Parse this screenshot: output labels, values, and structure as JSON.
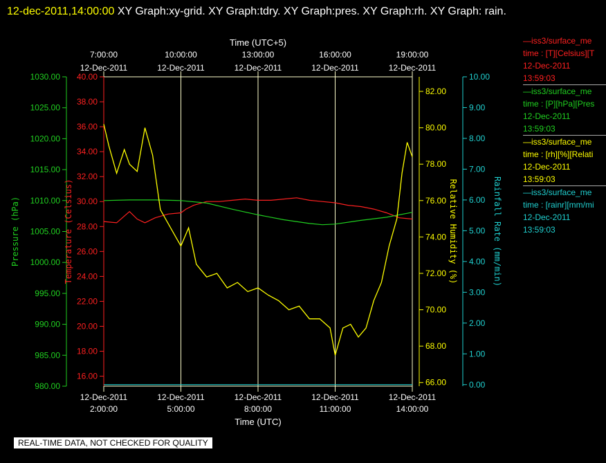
{
  "title": {
    "timestamp": "12-dec-2011,14:00:00",
    "graphs": " XY Graph:xy-grid.  XY Graph:tdry.  XY Graph:pres.  XY Graph:rh.  XY Graph: rain."
  },
  "footer": "REAL-TIME DATA, NOT CHECKED FOR QUALITY",
  "colors": {
    "temp": "#ff2020",
    "pres": "#20d020",
    "rh": "#ffff00",
    "rain": "#20d0d0",
    "text": "#ffffff",
    "grid": "#ffffcc"
  },
  "legend": [
    {
      "line1": "—iss3/surface_me",
      "line2": "time : [T][Celsius][T",
      "line3": "12-Dec-2011",
      "line4": "13:59:03",
      "color": "#ff2020"
    },
    {
      "line1": "—iss3/surface_me",
      "line2": "time : [P][hPa][Pres",
      "line3": "12-Dec-2011",
      "line4": "13:59:03",
      "color": "#20d020"
    },
    {
      "line1": "—iss3/surface_me",
      "line2": "time : [rh][%][Relati",
      "line3": "12-Dec-2011",
      "line4": "13:59:03",
      "color": "#ffff00"
    },
    {
      "line1": "—iss3/surface_me",
      "line2": "time : [rainr][mm/mi",
      "line3": "12-Dec-2011",
      "line4": "13:59:03",
      "color": "#20d0d0"
    }
  ],
  "chart_data": {
    "type": "line",
    "x_bottom_label": "Time (UTC)",
    "x_top_label": "Time (UTC+5)",
    "x_bottom_ticks": [
      {
        "date": "12-Dec-2011",
        "time": "2:00:00"
      },
      {
        "date": "12-Dec-2011",
        "time": "5:00:00"
      },
      {
        "date": "12-Dec-2011",
        "time": "8:00:00"
      },
      {
        "date": "12-Dec-2011",
        "time": "11:00:00"
      },
      {
        "date": "12-Dec-2011",
        "time": "14:00:00"
      }
    ],
    "x_top_ticks": [
      {
        "time": "7:00:00",
        "date": "12-Dec-2011"
      },
      {
        "time": "10:00:00",
        "date": "12-Dec-2011"
      },
      {
        "time": "13:00:00",
        "date": "12-Dec-2011"
      },
      {
        "time": "16:00:00",
        "date": "12-Dec-2011"
      },
      {
        "time": "19:00:00",
        "date": "12-Dec-2011"
      }
    ],
    "x_range_hours_utc": [
      2,
      14
    ],
    "axes": {
      "pressure": {
        "label": "Pressure (hPa)",
        "range": [
          980,
          1030
        ],
        "ticks": [
          "980.00",
          "985.00",
          "990.00",
          "995.00",
          "1000.00",
          "1005.00",
          "1010.00",
          "1015.00",
          "1020.00",
          "1025.00",
          "1030.00"
        ]
      },
      "temperature": {
        "label": "Temperature (Celsius)",
        "range": [
          15,
          40
        ],
        "ticks": [
          "16.00",
          "18.00",
          "20.00",
          "22.00",
          "24.00",
          "26.00",
          "28.00",
          "30.00",
          "32.00",
          "34.00",
          "36.00",
          "38.00",
          "40.00"
        ]
      },
      "humidity": {
        "label": "Relative Humidity (%)",
        "range": [
          65.8,
          82.8
        ],
        "ticks": [
          "66.00",
          "68.00",
          "70.00",
          "72.00",
          "74.00",
          "76.00",
          "78.00",
          "80.00",
          "82.00"
        ]
      },
      "rain": {
        "label": "Rainfall Rate (mm/min)",
        "range": [
          -0.05,
          10.0
        ],
        "ticks": [
          "0.00",
          "1.00",
          "2.00",
          "3.00",
          "4.00",
          "5.00",
          "6.00",
          "7.00",
          "8.00",
          "9.00",
          "10.00"
        ]
      }
    },
    "series": [
      {
        "name": "temperature",
        "axis": "temperature",
        "x": [
          2.0,
          2.5,
          3.0,
          3.3,
          3.6,
          4.0,
          4.5,
          5.0,
          5.2,
          5.5,
          6.0,
          6.5,
          7.0,
          7.5,
          8.0,
          8.5,
          9.0,
          9.5,
          10.0,
          10.5,
          11.0,
          11.5,
          12.0,
          12.5,
          13.0,
          13.5,
          14.0
        ],
        "y": [
          28.4,
          28.3,
          29.2,
          28.6,
          28.3,
          28.7,
          29.0,
          29.1,
          29.4,
          29.7,
          30.0,
          30.0,
          30.1,
          30.2,
          30.1,
          30.1,
          30.2,
          30.3,
          30.1,
          30.0,
          29.9,
          29.7,
          29.6,
          29.4,
          29.1,
          28.7,
          28.6
        ]
      },
      {
        "name": "pressure",
        "axis": "pressure",
        "x": [
          2.0,
          3.0,
          4.0,
          5.0,
          6.0,
          7.0,
          8.0,
          9.0,
          10.0,
          10.5,
          11.0,
          12.0,
          13.0,
          14.0
        ],
        "y": [
          1010.0,
          1010.1,
          1010.1,
          1010.0,
          1009.6,
          1008.6,
          1007.7,
          1006.9,
          1006.3,
          1006.1,
          1006.2,
          1006.8,
          1007.3,
          1008.1
        ]
      },
      {
        "name": "relative humidity",
        "axis": "humidity",
        "x": [
          2.0,
          2.2,
          2.5,
          2.8,
          3.0,
          3.3,
          3.6,
          3.9,
          4.2,
          4.6,
          5.0,
          5.3,
          5.6,
          6.0,
          6.4,
          6.8,
          7.2,
          7.6,
          8.0,
          8.4,
          8.8,
          9.2,
          9.6,
          10.0,
          10.4,
          10.8,
          11.0,
          11.3,
          11.6,
          11.9,
          12.2,
          12.5,
          12.8,
          13.1,
          13.4,
          13.6,
          13.8,
          14.0
        ],
        "y": [
          80.2,
          79.0,
          77.5,
          78.8,
          78.0,
          77.6,
          80.0,
          78.5,
          75.5,
          74.5,
          73.5,
          74.5,
          72.5,
          71.8,
          72.0,
          71.2,
          71.5,
          71.0,
          71.2,
          70.8,
          70.5,
          70.0,
          70.2,
          69.5,
          69.5,
          69.0,
          67.5,
          69.0,
          69.2,
          68.5,
          69.0,
          70.5,
          71.5,
          73.5,
          75.0,
          77.5,
          79.2,
          78.4
        ]
      },
      {
        "name": "rainfall rate",
        "axis": "rain",
        "x": [
          2.0,
          14.0
        ],
        "y": [
          0.0,
          0.0
        ]
      }
    ],
    "grid": true
  }
}
